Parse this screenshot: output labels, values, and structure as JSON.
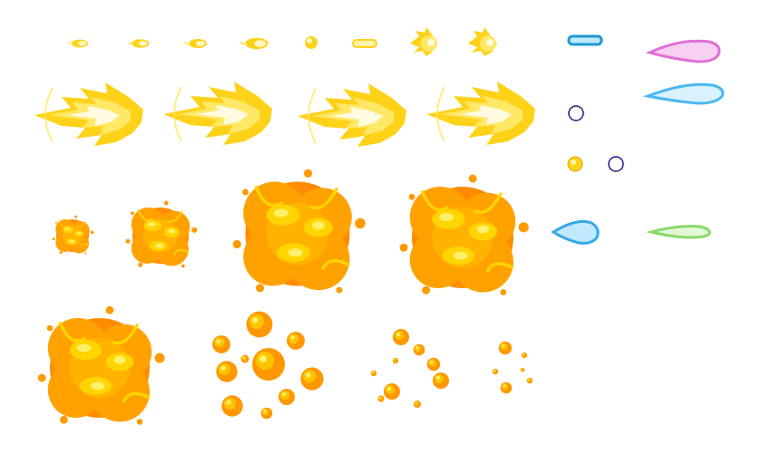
{
  "sprite_sheet": {
    "background": "#ffffff",
    "palette": {
      "flame_outer": "#ffd21a",
      "flame_mid": "#ffe866",
      "flame_core": "#fffbe0",
      "explosion_dark": "#ff8c00",
      "explosion_mid": "#ffa200",
      "explosion_light": "#ffd400",
      "explosion_core": "#fff06a",
      "ring_navy": "#1b1f8a",
      "bar_blue": "#1e9ad6",
      "beam_pink": "#e070d6",
      "beam_cyan": "#4ab8f0",
      "beam_green": "#8ad86a",
      "drop_blue": "#36a8e8"
    },
    "rows": [
      {
        "name": "small-projectiles",
        "frames": [
          "energy-pellet",
          "energy-pellet",
          "energy-pellet",
          "energy-pellet",
          "energy-orb",
          "energy-capsule",
          "flame-ball",
          "flame-ball"
        ]
      },
      {
        "name": "flame-comet",
        "frames": [
          "flame-comet",
          "flame-comet",
          "flame-comet",
          "flame-comet"
        ]
      },
      {
        "name": "explosion-growth",
        "frames": [
          "explosion-small",
          "explosion-medium",
          "explosion-large",
          "explosion-large"
        ]
      },
      {
        "name": "explosion-dissipate",
        "frames": [
          "explosion-large",
          "explosion-scatter",
          "explosion-scatter",
          "explosion-scatter"
        ]
      }
    ],
    "side_sprites": [
      "blue-bar",
      "navy-ring",
      "gold-orb",
      "navy-ring",
      "pink-beam",
      "cyan-beam",
      "blue-drop",
      "green-beam"
    ]
  }
}
